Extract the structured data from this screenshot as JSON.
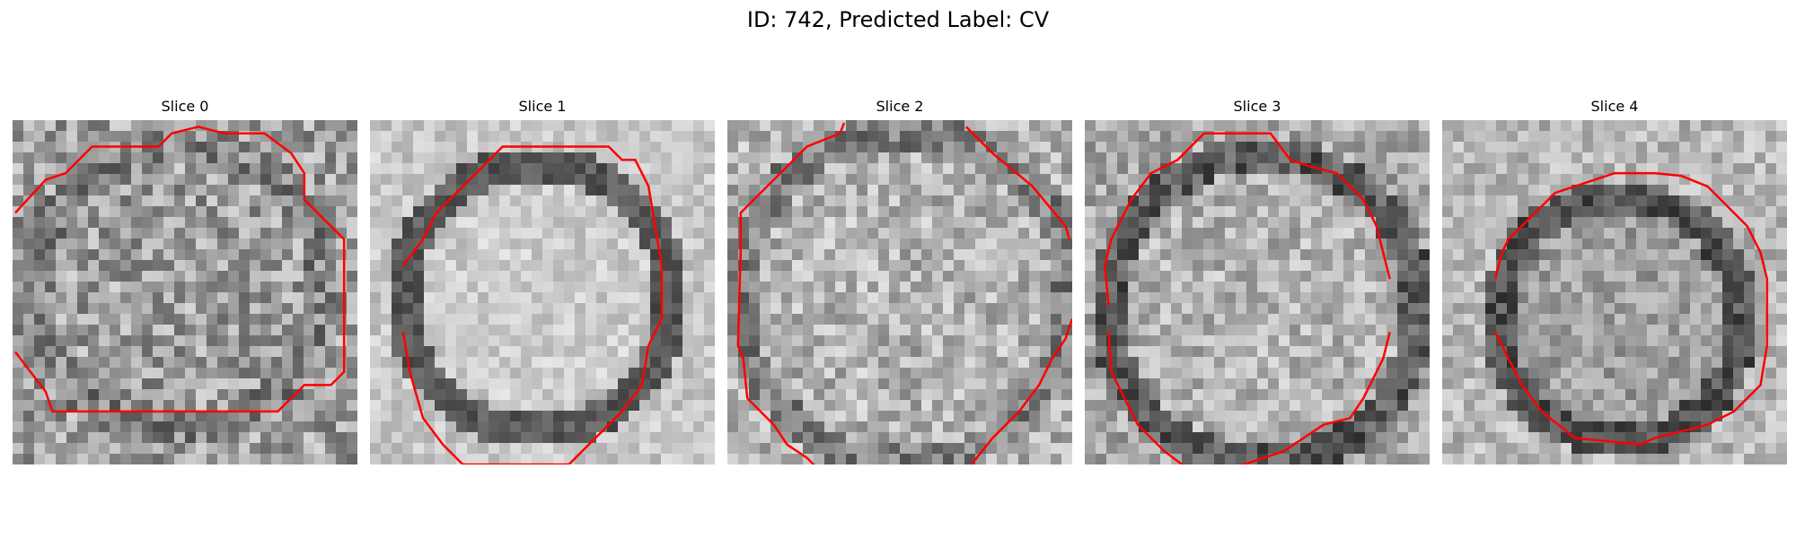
{
  "figure": {
    "title": "ID: 742, Predicted Label: CV"
  },
  "contour_color": "#ff0000",
  "panels": [
    {
      "label": "Slice 0"
    },
    {
      "label": "Slice 1"
    },
    {
      "label": "Slice 2"
    },
    {
      "label": "Slice 3"
    },
    {
      "label": "Slice 4"
    }
  ]
}
